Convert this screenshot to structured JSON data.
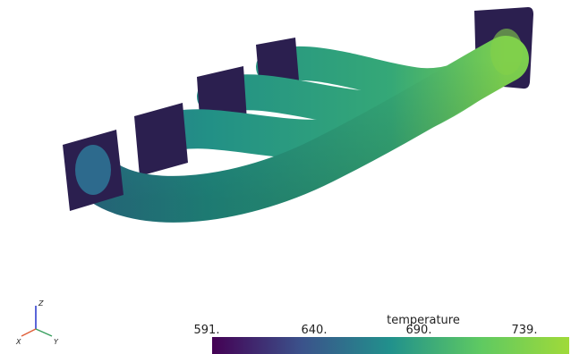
{
  "colorbar": {
    "title": "temperature",
    "ticks": [
      "591.",
      "640.",
      "690.",
      "739."
    ]
  },
  "axes_triad": {
    "x": "X",
    "y": "Y",
    "z": "Z"
  }
}
